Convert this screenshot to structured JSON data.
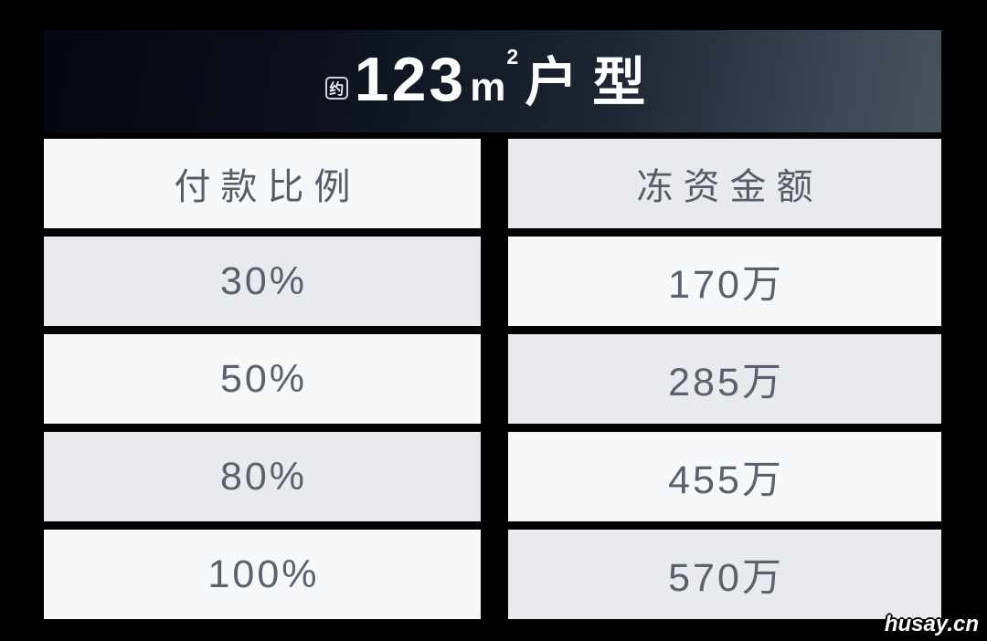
{
  "header": {
    "badge": "约",
    "area": "123",
    "unit_base": "m",
    "unit_exp": "2",
    "suffix": "户型"
  },
  "chart_data": {
    "type": "table",
    "title": "约123m²户型",
    "columns": [
      "付款比例",
      "冻资金额"
    ],
    "rows": [
      [
        "30%",
        "170万"
      ],
      [
        "50%",
        "285万"
      ],
      [
        "80%",
        "455万"
      ],
      [
        "100%",
        "570万"
      ]
    ],
    "layout_hints": {
      "header_background": "dark navy gradient",
      "cell_pattern": "checkerboard light/gray",
      "grid": "off"
    }
  },
  "watermark": {
    "text": "husay.cn"
  },
  "colors": {
    "canvas_background": "#000000",
    "banner_gradient_left": "#04070d",
    "banner_gradient_right": "#49535f",
    "banner_text": "#ffffff",
    "cell_light": "#f7f8fa",
    "cell_shade": "#e8eaed",
    "cell_text": "#59616d"
  }
}
